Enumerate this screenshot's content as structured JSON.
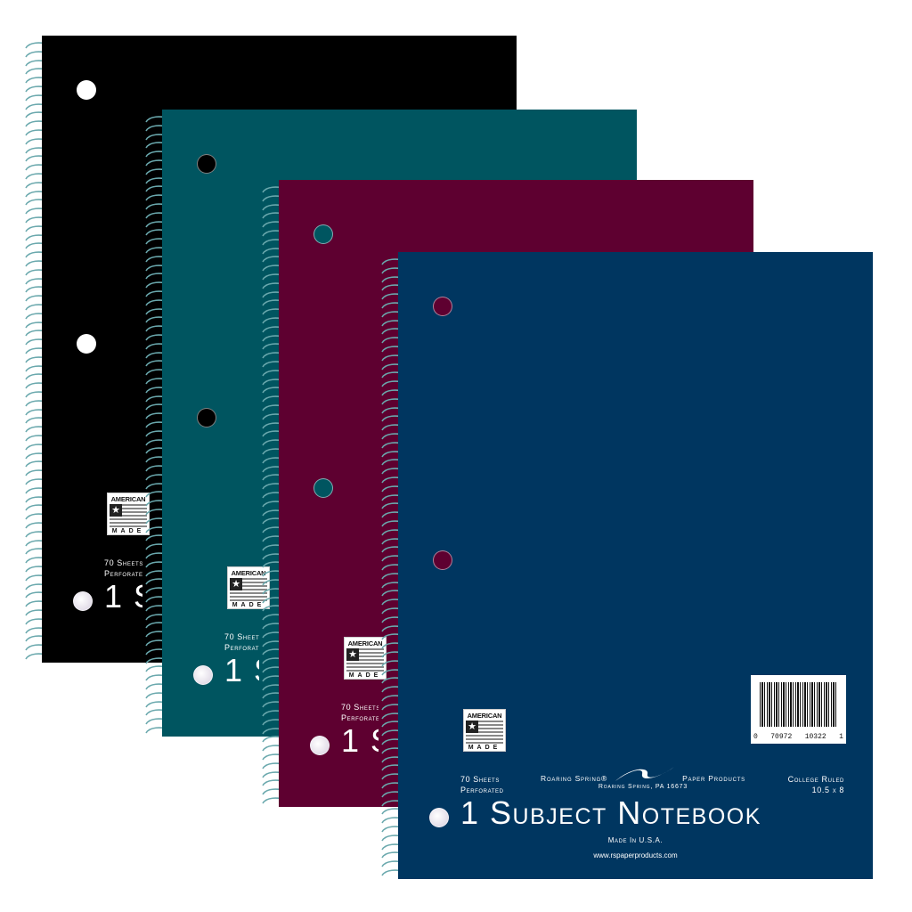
{
  "cover": {
    "badge_top": "AMERICAN",
    "badge_bottom": "MADE",
    "sheets": "70 Sheets",
    "perforated": "Perforated",
    "brand_left": "Roaring Spring®",
    "brand_right": "Paper Products",
    "address": "Roaring Spring, PA 16673",
    "ruling": "College Ruled",
    "size": "10.5 x 8",
    "title": "1 Subject Notebook",
    "made_in": "Made In U.S.A.",
    "url": "www.rspaperproducts.com",
    "barcode_left": "0",
    "barcode_mid1": "70972",
    "barcode_mid2": "10322",
    "barcode_right": "1"
  },
  "notebooks": [
    {
      "color": "black",
      "hex": "#000000"
    },
    {
      "color": "teal",
      "hex": "#005560"
    },
    {
      "color": "maroon",
      "hex": "#5e0030"
    },
    {
      "color": "navy",
      "hex": "#003660"
    }
  ]
}
